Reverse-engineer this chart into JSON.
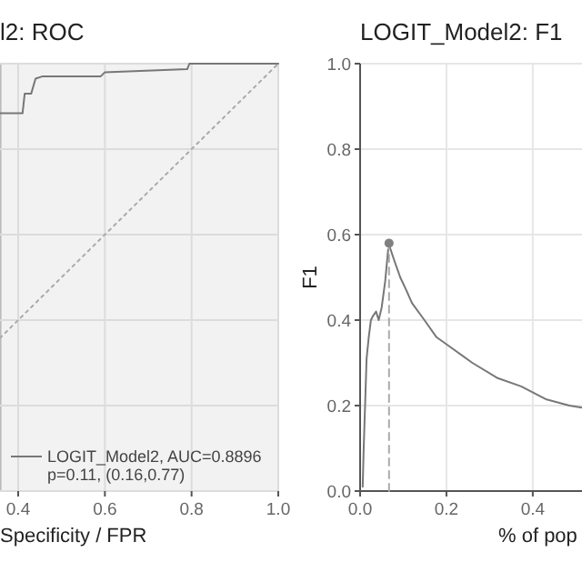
{
  "chart_data": [
    {
      "type": "line",
      "title": "l2: ROC",
      "xlabel": "Specificity / FPR",
      "xlim": [
        0.358,
        1
      ],
      "ylim": [
        0,
        1
      ],
      "xticks": [
        0.4,
        0.6,
        0.8,
        {
          "value": 1,
          "label": "1.0"
        }
      ],
      "yticks": [
        0,
        0.2,
        0.4,
        0.6,
        0.8,
        1
      ],
      "tick_labels": "x",
      "grid": true,
      "legend": "bottom right",
      "annotations": [
        "p=0.11, (0.16,0.77)"
      ],
      "series": [
        {
          "name": "LOGIT_Model2, AUC=0.8896",
          "color": "#777777",
          "x": [
            0.358,
            0.41,
            0.415,
            0.43,
            0.44,
            0.455,
            0.59,
            0.6,
            0.79,
            0.795,
            1
          ],
          "values": [
            0.884,
            0.884,
            0.93,
            0.93,
            0.965,
            0.97,
            0.97,
            0.98,
            0.987,
            1,
            1
          ]
        },
        {
          "type": "line",
          "color": "#aaaaaa",
          "line_style": "dotted",
          "x": [
            0.358,
            1
          ],
          "values": [
            0.358,
            1
          ]
        }
      ]
    },
    {
      "type": "line",
      "title": "LOGIT_Model2: F1",
      "xlabel": "% of pop",
      "ylabel": "F1",
      "xlim": [
        0,
        0.514
      ],
      "ylim": [
        0,
        1
      ],
      "xticks": [
        {
          "value": 0,
          "label": "0.0"
        },
        0.2,
        0.4
      ],
      "yticks": [
        {
          "value": 0,
          "label": "0.0"
        },
        0.2,
        0.4,
        0.6,
        0.8,
        {
          "value": 1,
          "label": "1.0"
        }
      ],
      "grid": true,
      "series": [
        {
          "color": "#777777",
          "x": [
            0.006,
            0.008,
            0.015,
            0.02,
            0.025,
            0.03,
            0.037,
            0.043,
            0.05,
            0.058,
            0.065,
            0.069,
            0.079,
            0.093,
            0.107,
            0.12,
            0.149,
            0.177,
            0.205,
            0.26,
            0.317,
            0.373,
            0.43,
            0.485,
            0.514
          ],
          "values": [
            0.01,
            0.09,
            0.31,
            0.36,
            0.4,
            0.41,
            0.42,
            0.4,
            0.43,
            0.49,
            0.565,
            0.57,
            0.54,
            0.5,
            0.47,
            0.44,
            0.4,
            0.36,
            0.34,
            0.3,
            0.265,
            0.245,
            0.215,
            0.2,
            0.195
          ]
        },
        {
          "type": "line",
          "color": "#aaaaaa",
          "line_style": "dashed",
          "x": [
            0.067,
            0.067
          ],
          "values": [
            0,
            0.58
          ]
        },
        {
          "type": "scatter",
          "color": "#808080",
          "marker": "circle",
          "x": [
            0.067
          ],
          "values": [
            0.58
          ]
        }
      ]
    }
  ]
}
